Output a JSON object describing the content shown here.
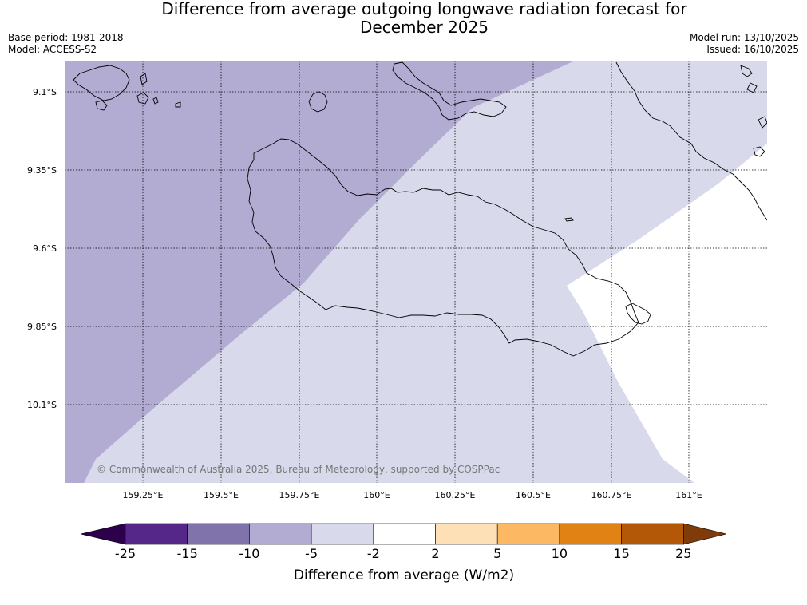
{
  "title": {
    "line1": "Difference from average outgoing longwave radiation forecast for",
    "line2": "December 2025"
  },
  "meta": {
    "base_period": "Base period: 1981-2018",
    "model": "Model: ACCESS-S2",
    "model_run": "Model run: 13/10/2025",
    "issued": "Issued: 16/10/2025"
  },
  "map": {
    "lat_labels": [
      "9.1°S",
      "9.35°S",
      "9.6°S",
      "9.85°S",
      "10.1°S"
    ],
    "lon_labels": [
      "159.25°E",
      "159.5°E",
      "159.75°E",
      "160°E",
      "160.25°E",
      "160.5°E",
      "160.75°E",
      "161°E"
    ],
    "copyright": "© Commonwealth of Australia 2025, Bureau of Meteorology, supported by COSPPac"
  },
  "legend": {
    "title": "Difference from average (W/m2)",
    "ticks": [
      "-25",
      "-15",
      "-10",
      "-5",
      "-2",
      "2",
      "5",
      "10",
      "15",
      "25"
    ],
    "colors": {
      "below_min": "#2d004b",
      "bins": [
        "#542788",
        "#8073ac",
        "#b2abd2",
        "#d8daeb",
        "#ffffff",
        "#fee0b6",
        "#fdb863",
        "#e08214",
        "#b35806"
      ],
      "above_max": "#7f3b08"
    }
  },
  "colors": {
    "region_a": "#b2abd2",
    "region_b": "#d8daeb",
    "region_c": "#ffffff"
  }
}
